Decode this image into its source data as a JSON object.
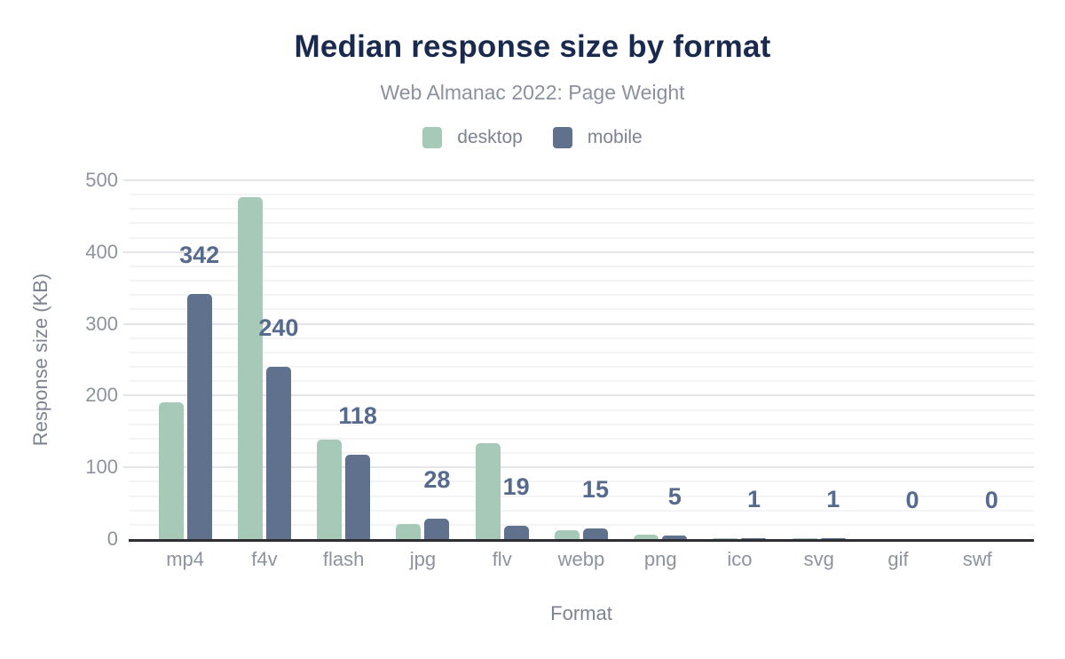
{
  "header": {
    "title": "Median response size by format",
    "subtitle": "Web Almanac 2022: Page Weight"
  },
  "colors": {
    "title": "#192a4e",
    "subtitle": "#8b919e",
    "axis_text": "#8d939e",
    "data_label": "#566a8e",
    "axis_line": "#2e2f33",
    "gridline_major": "#e4e4e9",
    "gridline_minor": "#f4f4f6",
    "desktop": "#a7cab8",
    "mobile": "#5f718c"
  },
  "chart_data": {
    "type": "bar",
    "title": "Median response size by format",
    "subtitle": "Web Almanac 2022: Page Weight",
    "xlabel": "Format",
    "ylabel": "Response size (KB)",
    "ylim": [
      0,
      500
    ],
    "yticks": [
      0,
      100,
      200,
      300,
      400,
      500
    ],
    "minor_grid_step": 20,
    "grid": true,
    "legend_position": "top",
    "categories": [
      "mp4",
      "f4v",
      "flash",
      "jpg",
      "flv",
      "webp",
      "png",
      "ico",
      "svg",
      "gif",
      "swf"
    ],
    "series": [
      {
        "name": "desktop",
        "color": "#a7cab8",
        "values": [
          190,
          477,
          139,
          21,
          134,
          12,
          6,
          1,
          1,
          0,
          0
        ]
      },
      {
        "name": "mobile",
        "color": "#5f718c",
        "values": [
          342,
          240,
          118,
          28,
          19,
          15,
          5,
          1,
          1,
          0,
          0
        ]
      }
    ],
    "data_labels": {
      "series": "mobile",
      "values": [
        "342",
        "240",
        "118",
        "28",
        "19",
        "15",
        "5",
        "1",
        "1",
        "0",
        "0"
      ]
    }
  }
}
